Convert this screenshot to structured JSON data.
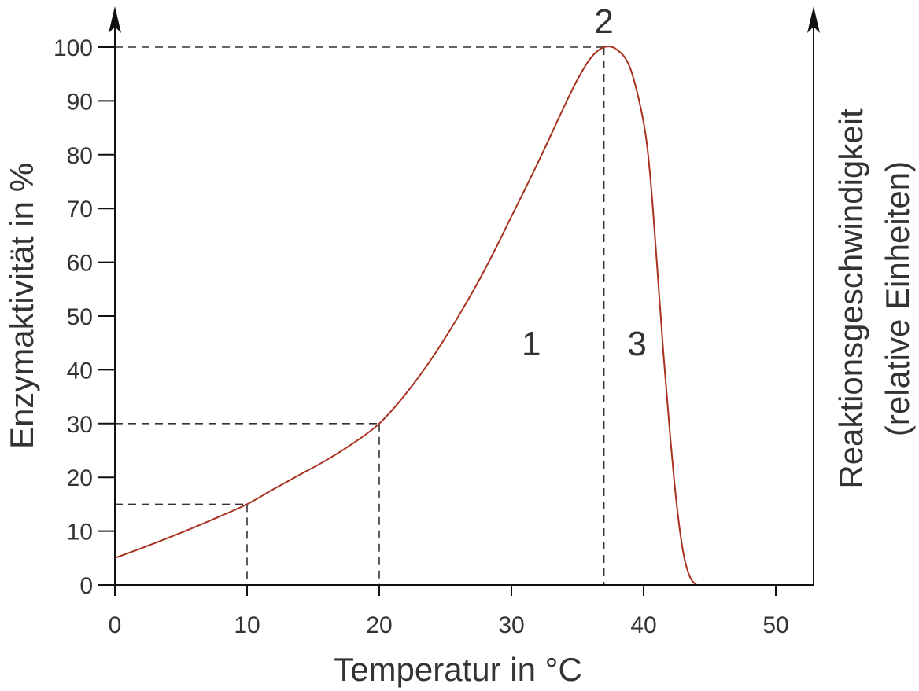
{
  "chart_data": {
    "type": "line",
    "title": "",
    "xlabel": "Temperatur in °C",
    "ylabel": "Enzymaktivität in %",
    "ylabel_right_line1": "Reaktionsgeschwindigkeit",
    "ylabel_right_line2": "(relative Einheiten)",
    "xlim": [
      0,
      53
    ],
    "ylim": [
      0,
      100
    ],
    "xticks": [
      0,
      10,
      20,
      30,
      40,
      50
    ],
    "yticks": [
      0,
      10,
      20,
      30,
      40,
      50,
      60,
      70,
      80,
      90,
      100
    ],
    "grid": false,
    "series": [
      {
        "color": "#a83220",
        "x": [
          0,
          2,
          4,
          6,
          8,
          10,
          12,
          14,
          16,
          18,
          20,
          22,
          24,
          26,
          28,
          30,
          32,
          34,
          35,
          36,
          37,
          38,
          39,
          40,
          40.5,
          41,
          41.5,
          42,
          42.5,
          43,
          43.5,
          44
        ],
        "y": [
          5,
          6.8,
          8.7,
          10.7,
          12.8,
          15,
          17.8,
          20.5,
          23.2,
          26.3,
          30,
          35.5,
          42.2,
          50,
          58.7,
          68.5,
          78.5,
          89,
          94,
          98,
          100,
          99.5,
          96,
          86,
          76,
          60,
          43,
          28,
          15,
          6,
          1.5,
          0
        ]
      }
    ],
    "reference_lines": [
      {
        "x": 10,
        "y": 15
      },
      {
        "x": 20,
        "y": 30
      },
      {
        "x": 37,
        "y": 100
      }
    ],
    "annotations": [
      {
        "text": "1",
        "x": 31.5,
        "y": 45
      },
      {
        "text": "2",
        "x": 37,
        "y": 105
      },
      {
        "text": "3",
        "x": 39.5,
        "y": 45
      }
    ],
    "colors": {
      "curve": "#a83220",
      "axis": "#111111",
      "text": "#333333",
      "reference": "#333333"
    }
  }
}
